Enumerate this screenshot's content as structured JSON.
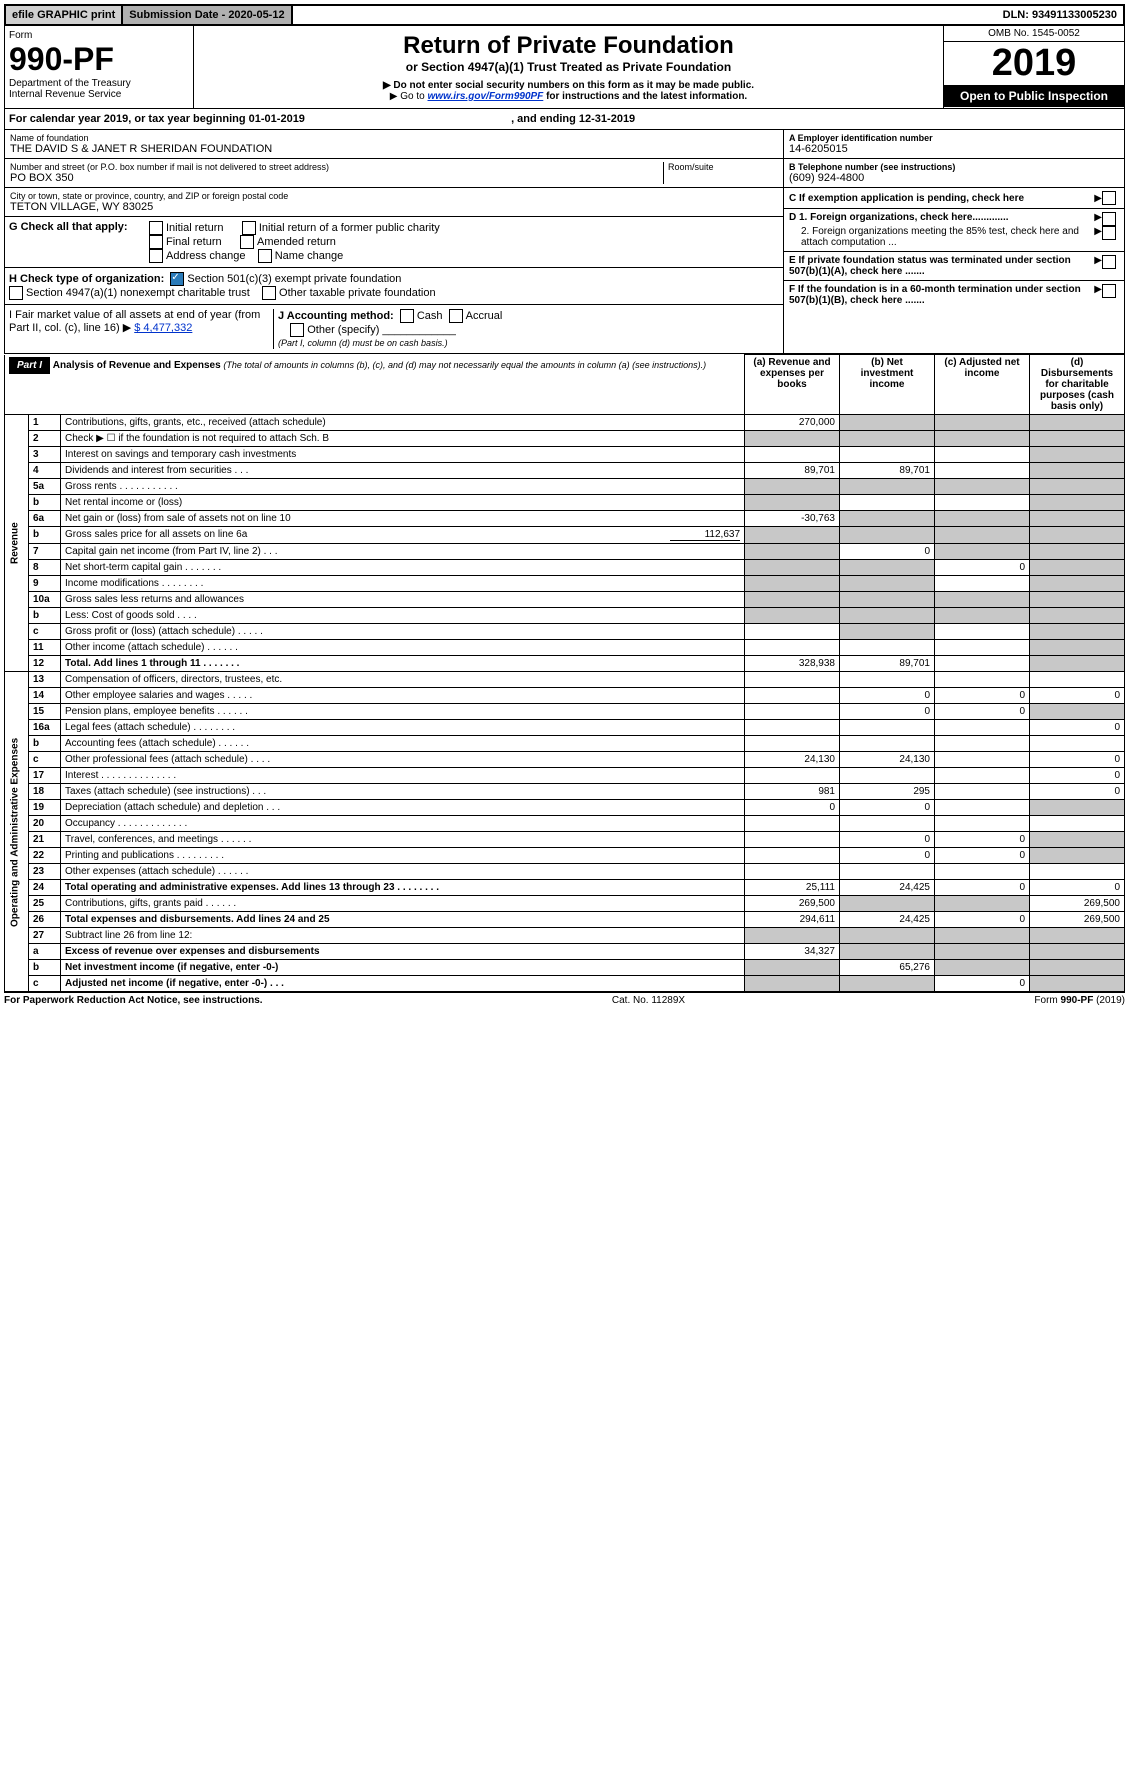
{
  "topbar": {
    "efile": "efile GRAPHIC print",
    "subdate_label": "Submission Date - 2020-05-12",
    "dln": "DLN: 93491133005230"
  },
  "header": {
    "form_label": "Form",
    "form_no": "990-PF",
    "dept": "Department of the Treasury",
    "irs": "Internal Revenue Service",
    "title": "Return of Private Foundation",
    "subtitle": "or Section 4947(a)(1) Trust Treated as Private Foundation",
    "bullet1": "▶ Do not enter social security numbers on this form as it may be made public.",
    "bullet2_pre": "▶ Go to ",
    "bullet2_link": "www.irs.gov/Form990PF",
    "bullet2_post": " for instructions and the latest information.",
    "omb": "OMB No. 1545-0052",
    "year": "2019",
    "openpub": "Open to Public Inspection"
  },
  "calbar": {
    "text_pre": "For calendar year 2019, or tax year beginning ",
    "begin": "01-01-2019",
    "mid": " , and ending ",
    "end": "12-31-2019"
  },
  "org": {
    "name_label": "Name of foundation",
    "name": "THE DAVID S & JANET R SHERIDAN FOUNDATION",
    "addr_label": "Number and street (or P.O. box number if mail is not delivered to street address)",
    "addr": "PO BOX 350",
    "room_label": "Room/suite",
    "city_label": "City or town, state or province, country, and ZIP or foreign postal code",
    "city": "TETON VILLAGE, WY  83025",
    "ein_label": "A Employer identification number",
    "ein": "14-6205015",
    "phone_label": "B Telephone number (see instructions)",
    "phone": "(609) 924-4800",
    "exempt_label": "C If exemption application is pending, check here",
    "d1": "D 1. Foreign organizations, check here.............",
    "d2": "2. Foreign organizations meeting the 85% test, check here and attach computation ...",
    "e": "E If private foundation status was terminated under section 507(b)(1)(A), check here .......",
    "f": "F If the foundation is in a 60-month termination under section 507(b)(1)(B), check here ......."
  },
  "checkG": {
    "label": "G Check all that apply:",
    "opts": [
      "Initial return",
      "Final return",
      "Address change",
      "Initial return of a former public charity",
      "Amended return",
      "Name change"
    ]
  },
  "checkH": {
    "label": "H Check type of organization:",
    "opt1": "Section 501(c)(3) exempt private foundation",
    "opt2": "Section 4947(a)(1) nonexempt charitable trust",
    "opt3": "Other taxable private foundation"
  },
  "lineI": {
    "label": "I Fair market value of all assets at end of year (from Part II, col. (c), line 16) ▶",
    "value": "$  4,477,332"
  },
  "lineJ": {
    "label": "J Accounting method:",
    "cash": "Cash",
    "accrual": "Accrual",
    "other": "Other (specify)",
    "note": "(Part I, column (d) must be on cash basis.)"
  },
  "part1": {
    "tag": "Part I",
    "title": "Analysis of Revenue and Expenses",
    "note": "(The total of amounts in columns (b), (c), and (d) may not necessarily equal the amounts in column (a) (see instructions).)",
    "col_a": "(a)   Revenue and expenses per books",
    "col_b": "(b)  Net investment income",
    "col_c": "(c)  Adjusted net income",
    "col_d": "(d)  Disbursements for charitable purposes (cash basis only)",
    "side_rev": "Revenue",
    "side_exp": "Operating and Administrative Expenses"
  },
  "rows": {
    "1": {
      "no": "1",
      "desc": "Contributions, gifts, grants, etc., received (attach schedule)",
      "a": "270,000"
    },
    "2": {
      "no": "2",
      "desc": "Check ▶ ☐ if the foundation is not required to attach Sch. B"
    },
    "3": {
      "no": "3",
      "desc": "Interest on savings and temporary cash investments"
    },
    "4": {
      "no": "4",
      "desc": "Dividends and interest from securities   .   .   .",
      "a": "89,701",
      "b": "89,701"
    },
    "5a": {
      "no": "5a",
      "desc": "Gross rents   .   .   .   .   .   .   .   .   .   .   ."
    },
    "5b": {
      "no": "b",
      "desc": "Net rental income or (loss)"
    },
    "6a": {
      "no": "6a",
      "desc": "Net gain or (loss) from sale of assets not on line 10",
      "a": "-30,763"
    },
    "6b": {
      "no": "b",
      "desc": "Gross sales price for all assets on line 6a",
      "inline": "112,637"
    },
    "7": {
      "no": "7",
      "desc": "Capital gain net income (from Part IV, line 2)   .   .   .",
      "b": "0"
    },
    "8": {
      "no": "8",
      "desc": "Net short-term capital gain   .   .   .   .   .   .   .",
      "c": "0"
    },
    "9": {
      "no": "9",
      "desc": "Income modifications   .   .   .   .   .   .   .   ."
    },
    "10a": {
      "no": "10a",
      "desc": "Gross sales less returns and allowances"
    },
    "10b": {
      "no": "b",
      "desc": "Less: Cost of goods sold   .   .   .   ."
    },
    "10c": {
      "no": "c",
      "desc": "Gross profit or (loss) (attach schedule)   .   .   .   .   ."
    },
    "11": {
      "no": "11",
      "desc": "Other income (attach schedule)   .   .   .   .   .   ."
    },
    "12": {
      "no": "12",
      "desc": "Total. Add lines 1 through 11   .   .   .   .   .   .   .",
      "bold": true,
      "a": "328,938",
      "b": "89,701"
    },
    "13": {
      "no": "13",
      "desc": "Compensation of officers, directors, trustees, etc."
    },
    "14": {
      "no": "14",
      "desc": "Other employee salaries and wages   .   .   .   .   .",
      "b": "0",
      "c": "0",
      "d": "0"
    },
    "15": {
      "no": "15",
      "desc": "Pension plans, employee benefits   .   .   .   .   .   .",
      "b": "0",
      "c": "0"
    },
    "16a": {
      "no": "16a",
      "desc": "Legal fees (attach schedule)   .   .   .   .   .   .   .   .",
      "d": "0"
    },
    "16b": {
      "no": "b",
      "desc": "Accounting fees (attach schedule)   .   .   .   .   .   ."
    },
    "16c": {
      "no": "c",
      "desc": "Other professional fees (attach schedule)   .   .   .   .",
      "a": "24,130",
      "b": "24,130",
      "d": "0"
    },
    "17": {
      "no": "17",
      "desc": "Interest   .   .   .   .   .   .   .   .   .   .   .   .   .   .",
      "d": "0"
    },
    "18": {
      "no": "18",
      "desc": "Taxes (attach schedule) (see instructions)   .   .   .",
      "a": "981",
      "b": "295",
      "d": "0"
    },
    "19": {
      "no": "19",
      "desc": "Depreciation (attach schedule) and depletion   .   .   .",
      "a": "0",
      "b": "0"
    },
    "20": {
      "no": "20",
      "desc": "Occupancy   .   .   .   .   .   .   .   .   .   .   .   .   ."
    },
    "21": {
      "no": "21",
      "desc": "Travel, conferences, and meetings   .   .   .   .   .   .",
      "b": "0",
      "c": "0"
    },
    "22": {
      "no": "22",
      "desc": "Printing and publications   .   .   .   .   .   .   .   .   .",
      "b": "0",
      "c": "0"
    },
    "23": {
      "no": "23",
      "desc": "Other expenses (attach schedule)   .   .   .   .   .   ."
    },
    "24": {
      "no": "24",
      "desc": "Total operating and administrative expenses. Add lines 13 through 23   .   .   .   .   .   .   .   .",
      "bold": true,
      "a": "25,111",
      "b": "24,425",
      "c": "0",
      "d": "0"
    },
    "25": {
      "no": "25",
      "desc": "Contributions, gifts, grants paid   .   .   .   .   .   .",
      "a": "269,500",
      "d": "269,500"
    },
    "26": {
      "no": "26",
      "desc": "Total expenses and disbursements. Add lines 24 and 25",
      "bold": true,
      "a": "294,611",
      "b": "24,425",
      "c": "0",
      "d": "269,500"
    },
    "27": {
      "no": "27",
      "desc": "Subtract line 26 from line 12:"
    },
    "27a": {
      "no": "a",
      "desc": "Excess of revenue over expenses and disbursements",
      "bold": true,
      "a": "34,327"
    },
    "27b": {
      "no": "b",
      "desc": "Net investment income (if negative, enter -0-)",
      "bold": true,
      "b": "65,276"
    },
    "27c": {
      "no": "c",
      "desc": "Adjusted net income (if negative, enter -0-)   .   .   .",
      "bold": true,
      "c": "0"
    }
  },
  "footer": {
    "left": "For Paperwork Reduction Act Notice, see instructions.",
    "mid": "Cat. No. 11289X",
    "right": "Form 990-PF (2019)"
  }
}
